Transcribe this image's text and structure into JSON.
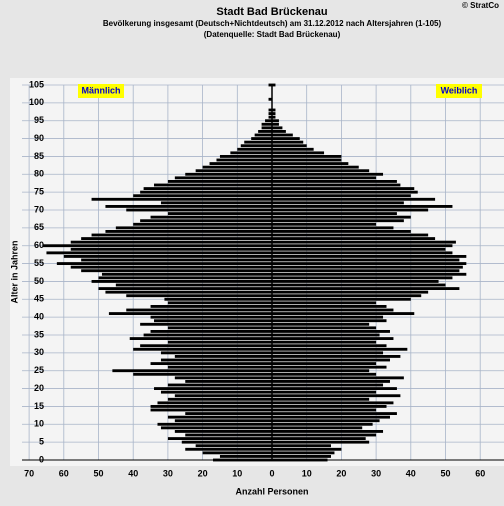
{
  "chart_data": {
    "type": "pyramid",
    "title": "Stadt Bad Brückenau",
    "subtitle": "Bevölkerung  insgesamt (Deutsch+Nichtdeutsch) am 31.12.2012 nach Altersjahren (1-105)",
    "source": "(Datenquelle: Stadt Bad Brückenau)",
    "copyright": "© StratCo",
    "xlabel": "Anzahl Personen",
    "ylabel": "Alter in Jahren",
    "categories": [
      0,
      1,
      2,
      3,
      4,
      5,
      6,
      7,
      8,
      9,
      10,
      11,
      12,
      13,
      14,
      15,
      16,
      17,
      18,
      19,
      20,
      21,
      22,
      23,
      24,
      25,
      26,
      27,
      28,
      29,
      30,
      31,
      32,
      33,
      34,
      35,
      36,
      37,
      38,
      39,
      40,
      41,
      42,
      43,
      44,
      45,
      46,
      47,
      48,
      49,
      50,
      51,
      52,
      53,
      54,
      55,
      56,
      57,
      58,
      59,
      60,
      61,
      62,
      63,
      64,
      65,
      66,
      67,
      68,
      69,
      70,
      71,
      72,
      73,
      74,
      75,
      76,
      77,
      78,
      79,
      80,
      81,
      82,
      83,
      84,
      85,
      86,
      87,
      88,
      89,
      90,
      91,
      92,
      93,
      94,
      95,
      96,
      97,
      98,
      99,
      100,
      101,
      102,
      103,
      104,
      105
    ],
    "series": [
      {
        "name": "Männlich",
        "side": "left",
        "color": "#000000",
        "values": [
          17,
          15,
          20,
          25,
          22,
          26,
          30,
          25,
          28,
          32,
          33,
          28,
          30,
          25,
          35,
          35,
          33,
          30,
          28,
          32,
          34,
          30,
          25,
          28,
          40,
          46,
          30,
          35,
          32,
          28,
          32,
          40,
          38,
          30,
          41,
          37,
          35,
          30,
          38,
          34,
          35,
          47,
          42,
          35,
          30,
          31,
          42,
          48,
          50,
          45,
          52,
          50,
          49,
          55,
          58,
          62,
          55,
          60,
          65,
          58,
          66,
          58,
          55,
          52,
          48,
          45,
          40,
          38,
          35,
          30,
          42,
          48,
          32,
          52,
          40,
          38,
          37,
          34,
          30,
          28,
          25,
          22,
          20,
          18,
          16,
          15,
          12,
          10,
          9,
          8,
          6,
          5,
          4,
          3,
          3,
          2,
          1,
          1,
          1,
          0,
          0,
          1,
          0,
          0,
          0,
          1
        ]
      },
      {
        "name": "Weiblich",
        "side": "right",
        "color": "#000000",
        "values": [
          16,
          17,
          18,
          20,
          17,
          28,
          27,
          30,
          32,
          26,
          29,
          31,
          34,
          36,
          30,
          33,
          35,
          28,
          37,
          30,
          36,
          32,
          34,
          38,
          30,
          28,
          33,
          30,
          34,
          37,
          32,
          39,
          33,
          30,
          35,
          31,
          34,
          30,
          28,
          33,
          32,
          41,
          35,
          33,
          30,
          40,
          43,
          45,
          54,
          50,
          48,
          52,
          56,
          54,
          55,
          56,
          54,
          56,
          52,
          50,
          52,
          53,
          47,
          45,
          40,
          35,
          30,
          38,
          40,
          36,
          45,
          52,
          38,
          47,
          40,
          42,
          41,
          37,
          36,
          30,
          32,
          28,
          25,
          22,
          20,
          20,
          15,
          12,
          10,
          9,
          8,
          6,
          4,
          3,
          2,
          2,
          1,
          1,
          1,
          0,
          0,
          0,
          0,
          0,
          0,
          1
        ]
      }
    ],
    "legend_box": "#ffff00",
    "legend_text": "#0000cc",
    "xlim": [
      -70,
      70
    ],
    "xticks": [
      {
        "value": -70,
        "label": "70"
      },
      {
        "value": -60,
        "label": "60"
      },
      {
        "value": -50,
        "label": "50"
      },
      {
        "value": -40,
        "label": "40"
      },
      {
        "value": -30,
        "label": "30"
      },
      {
        "value": -20,
        "label": "20"
      },
      {
        "value": -10,
        "label": "10"
      },
      0,
      10,
      20,
      30,
      40,
      50,
      60,
      70
    ],
    "ylim": [
      0,
      105
    ],
    "yticks": [
      0,
      5,
      10,
      15,
      20,
      25,
      30,
      35,
      40,
      45,
      50,
      55,
      60,
      65,
      70,
      75,
      80,
      85,
      90,
      95,
      100,
      105
    ],
    "grid": true
  }
}
